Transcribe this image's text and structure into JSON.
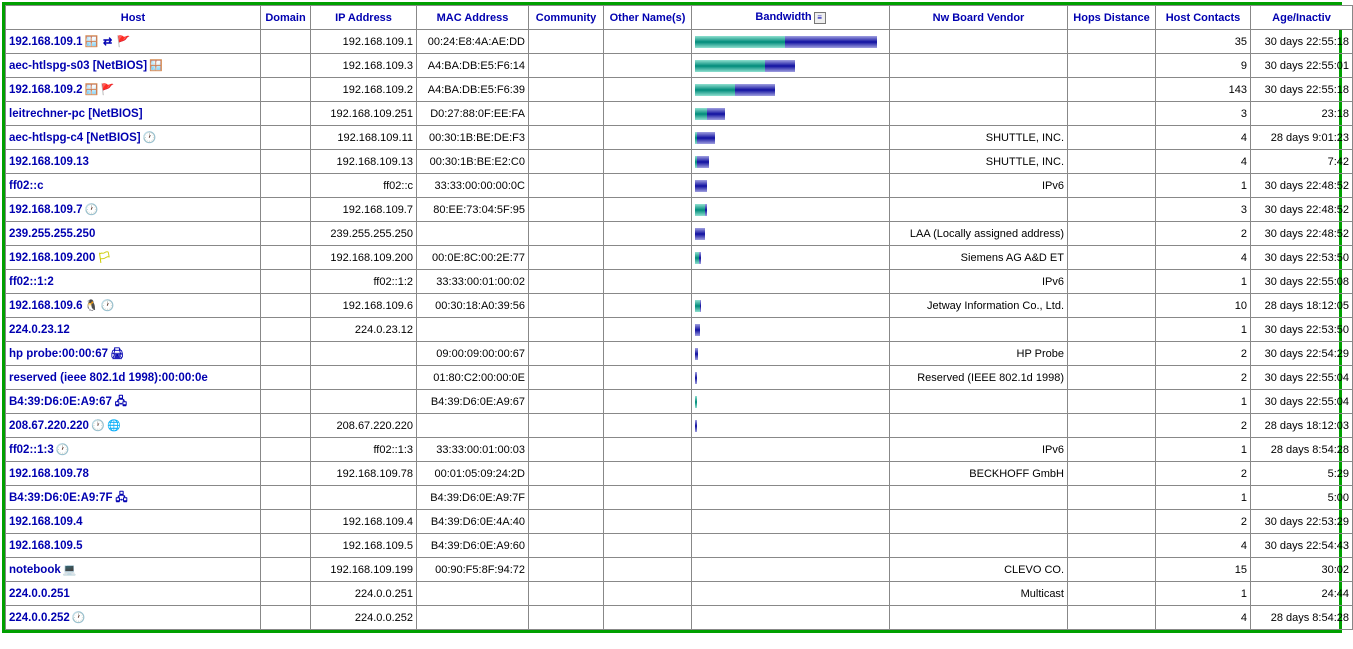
{
  "columns": {
    "host": "Host",
    "domain": "Domain",
    "ip": "IP Address",
    "mac": "MAC Address",
    "community": "Community",
    "other": "Other Name(s)",
    "bandwidth": "Bandwidth",
    "vendor": "Nw Board Vendor",
    "hops": "Hops Distance",
    "contacts": "Host Contacts",
    "age": "Age/Inactiv"
  },
  "bw_colors": {
    "seg1": "#008b7a",
    "seg2": "#1010a0"
  },
  "rows": [
    {
      "host": "192.168.109.1",
      "icons": [
        "win",
        "router",
        "flag-green"
      ],
      "ip": "192.168.109.1",
      "mac": "00:24:E8:4A:AE:DD",
      "bw": [
        90,
        92
      ],
      "vendor": "",
      "contacts": "35",
      "age": "30 days 22:55:18"
    },
    {
      "host": "aec-htlspg-s03 [NetBIOS]",
      "icons": [
        "win"
      ],
      "ip": "192.168.109.3",
      "mac": "A4:BA:DB:E5:F6:14",
      "bw": [
        70,
        30
      ],
      "vendor": "",
      "contacts": "9",
      "age": "30 days 22:55:01"
    },
    {
      "host": "192.168.109.2",
      "icons": [
        "win",
        "flag-green"
      ],
      "ip": "192.168.109.2",
      "mac": "A4:BA:DB:E5:F6:39",
      "bw": [
        40,
        40
      ],
      "vendor": "",
      "contacts": "143",
      "age": "30 days 22:55:18"
    },
    {
      "host": "leitrechner-pc [NetBIOS]",
      "icons": [],
      "ip": "192.168.109.251",
      "mac": "D0:27:88:0F:EE:FA",
      "bw": [
        12,
        18
      ],
      "vendor": "",
      "contacts": "3",
      "age": "23:18"
    },
    {
      "host": "aec-htlspg-c4 [NetBIOS]",
      "icons": [
        "clock"
      ],
      "ip": "192.168.109.11",
      "mac": "00:30:1B:BE:DE:F3",
      "bw": [
        2,
        18
      ],
      "vendor": "SHUTTLE, INC.",
      "contacts": "4",
      "age": "28 days 9:01:23"
    },
    {
      "host": "192.168.109.13",
      "icons": [],
      "ip": "192.168.109.13",
      "mac": "00:30:1B:BE:E2:C0",
      "bw": [
        2,
        12
      ],
      "vendor": "SHUTTLE, INC.",
      "contacts": "4",
      "age": "7:42"
    },
    {
      "host": "ff02::c",
      "icons": [],
      "ip": "ff02::c",
      "mac": "33:33:00:00:00:0C",
      "bw": [
        0,
        12
      ],
      "vendor": "IPv6",
      "contacts": "1",
      "age": "30 days 22:48:52"
    },
    {
      "host": "192.168.109.7",
      "icons": [
        "clock"
      ],
      "ip": "192.168.109.7",
      "mac": "80:EE:73:04:5F:95",
      "bw": [
        10,
        2
      ],
      "vendor": "",
      "contacts": "3",
      "age": "30 days 22:48:52"
    },
    {
      "host": "239.255.255.250",
      "icons": [],
      "ip": "239.255.255.250",
      "mac": "",
      "bw": [
        0,
        10
      ],
      "vendor": "LAA (Locally assigned address)",
      "contacts": "2",
      "age": "30 days 22:48:52"
    },
    {
      "host": "192.168.109.200",
      "icons": [
        "flag-yellow"
      ],
      "ip": "192.168.109.200",
      "mac": "00:0E:8C:00:2E:77",
      "bw": [
        4,
        2
      ],
      "vendor": "Siemens AG A&D ET",
      "contacts": "4",
      "age": "30 days 22:53:50"
    },
    {
      "host": "ff02::1:2",
      "icons": [],
      "ip": "ff02::1:2",
      "mac": "33:33:00:01:00:02",
      "bw": [
        0,
        0
      ],
      "vendor": "IPv6",
      "contacts": "1",
      "age": "30 days 22:55:08"
    },
    {
      "host": "192.168.109.6",
      "icons": [
        "linux",
        "clock"
      ],
      "ip": "192.168.109.6",
      "mac": "00:30:18:A0:39:56",
      "bw": [
        5,
        1
      ],
      "vendor": "Jetway Information Co., Ltd.",
      "contacts": "10",
      "age": "28 days 18:12:05"
    },
    {
      "host": "224.0.23.12",
      "icons": [],
      "ip": "224.0.23.12",
      "mac": "",
      "bw": [
        0,
        5
      ],
      "vendor": "",
      "contacts": "1",
      "age": "30 days 22:53:50"
    },
    {
      "host": "hp probe:00:00:67",
      "icons": [
        "printer"
      ],
      "ip": "",
      "mac": "09:00:09:00:00:67",
      "bw": [
        0,
        3
      ],
      "vendor": "HP Probe",
      "contacts": "2",
      "age": "30 days 22:54:29"
    },
    {
      "host": "reserved (ieee 802.1d 1998):00:00:0e",
      "icons": [],
      "ip": "",
      "mac": "01:80:C2:00:00:0E",
      "bw": [
        0,
        2
      ],
      "vendor": "Reserved (IEEE 802.1d 1998)",
      "contacts": "2",
      "age": "30 days 22:55:04"
    },
    {
      "host": "B4:39:D6:0E:A9:67",
      "icons": [
        "nic"
      ],
      "ip": "",
      "mac": "B4:39:D6:0E:A9:67",
      "bw": [
        2,
        0
      ],
      "vendor": "",
      "contacts": "1",
      "age": "30 days 22:55:04"
    },
    {
      "host": "208.67.220.220",
      "icons": [
        "clock",
        "globe"
      ],
      "ip": "208.67.220.220",
      "mac": "",
      "bw": [
        0,
        2
      ],
      "vendor": "",
      "contacts": "2",
      "age": "28 days 18:12:03"
    },
    {
      "host": "ff02::1:3",
      "icons": [
        "clock"
      ],
      "ip": "ff02::1:3",
      "mac": "33:33:00:01:00:03",
      "bw": [
        0,
        0
      ],
      "vendor": "IPv6",
      "contacts": "1",
      "age": "28 days 8:54:28"
    },
    {
      "host": "192.168.109.78",
      "icons": [],
      "ip": "192.168.109.78",
      "mac": "00:01:05:09:24:2D",
      "bw": [
        0,
        0
      ],
      "vendor": "BECKHOFF GmbH",
      "contacts": "2",
      "age": "5:29"
    },
    {
      "host": "B4:39:D6:0E:A9:7F",
      "icons": [
        "nic"
      ],
      "ip": "",
      "mac": "B4:39:D6:0E:A9:7F",
      "bw": [
        0,
        0
      ],
      "vendor": "",
      "contacts": "1",
      "age": "5:00"
    },
    {
      "host": "192.168.109.4",
      "icons": [],
      "ip": "192.168.109.4",
      "mac": "B4:39:D6:0E:4A:40",
      "bw": [
        0,
        0
      ],
      "vendor": "",
      "contacts": "2",
      "age": "30 days 22:53:29"
    },
    {
      "host": "192.168.109.5",
      "icons": [],
      "ip": "192.168.109.5",
      "mac": "B4:39:D6:0E:A9:60",
      "bw": [
        0,
        0
      ],
      "vendor": "",
      "contacts": "4",
      "age": "30 days 22:54:43"
    },
    {
      "host": "notebook",
      "icons": [
        "laptop"
      ],
      "ip": "192.168.109.199",
      "mac": "00:90:F5:8F:94:72",
      "bw": [
        0,
        0
      ],
      "vendor": "CLEVO CO.",
      "contacts": "15",
      "age": "30:02"
    },
    {
      "host": "224.0.0.251",
      "icons": [],
      "ip": "224.0.0.251",
      "mac": "",
      "bw": [
        0,
        0
      ],
      "vendor": "Multicast",
      "contacts": "1",
      "age": "24:44"
    },
    {
      "host": "224.0.0.252",
      "icons": [
        "clock"
      ],
      "ip": "224.0.0.252",
      "mac": "",
      "bw": [
        0,
        0
      ],
      "vendor": "",
      "contacts": "4",
      "age": "28 days 8:54:28"
    }
  ],
  "icon_glyphs": {
    "win": "🪟",
    "router": "⇄",
    "flag-green": "🚩",
    "flag-yellow": "🏳",
    "clock": "🕐",
    "linux": "🐧",
    "printer": "🖨",
    "nic": "🖧",
    "globe": "🌐",
    "laptop": "💻"
  }
}
